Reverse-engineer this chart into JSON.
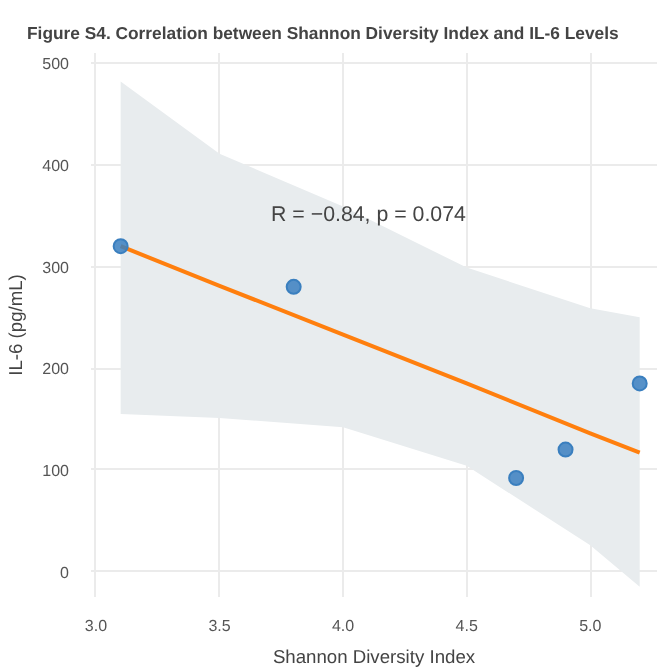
{
  "chart_data": {
    "type": "scatter",
    "title": "Figure S4. Correlation between Shannon Diversity Index and IL-6 Levels",
    "xlabel": "Shannon Diversity Index",
    "ylabel": "IL-6 (pg/mL)",
    "series": [
      {
        "type": "line",
        "color": "#ff7f0e",
        "x": [
          3.1,
          3.5,
          4.0,
          4.5,
          5.0,
          5.2
        ],
        "values": [
          320,
          281,
          233,
          185,
          136,
          117
        ],
        "lower": [
          155,
          151,
          142,
          104,
          26,
          -15
        ],
        "upper": [
          482,
          411,
          359,
          299,
          259,
          250
        ]
      },
      {
        "color": "#3a7fbf",
        "x": [
          3.1,
          3.8,
          4.7,
          4.9,
          5.2
        ],
        "values": [
          320,
          280,
          92,
          120,
          185
        ],
        "marker": "circle"
      }
    ],
    "xlim": [
      2.98,
      5.27
    ],
    "ylim": [
      -25,
      510
    ],
    "xticks": [
      {
        "value": 3.0,
        "label": "3.0"
      },
      3.5,
      {
        "value": 4.0,
        "label": "4.0"
      },
      4.5,
      {
        "value": 5.0,
        "label": "5.0"
      }
    ],
    "yticks": [
      0,
      100,
      200,
      300,
      400,
      500
    ],
    "grid": true,
    "annotations": [
      "R = −0.84, p = 0.074"
    ]
  }
}
